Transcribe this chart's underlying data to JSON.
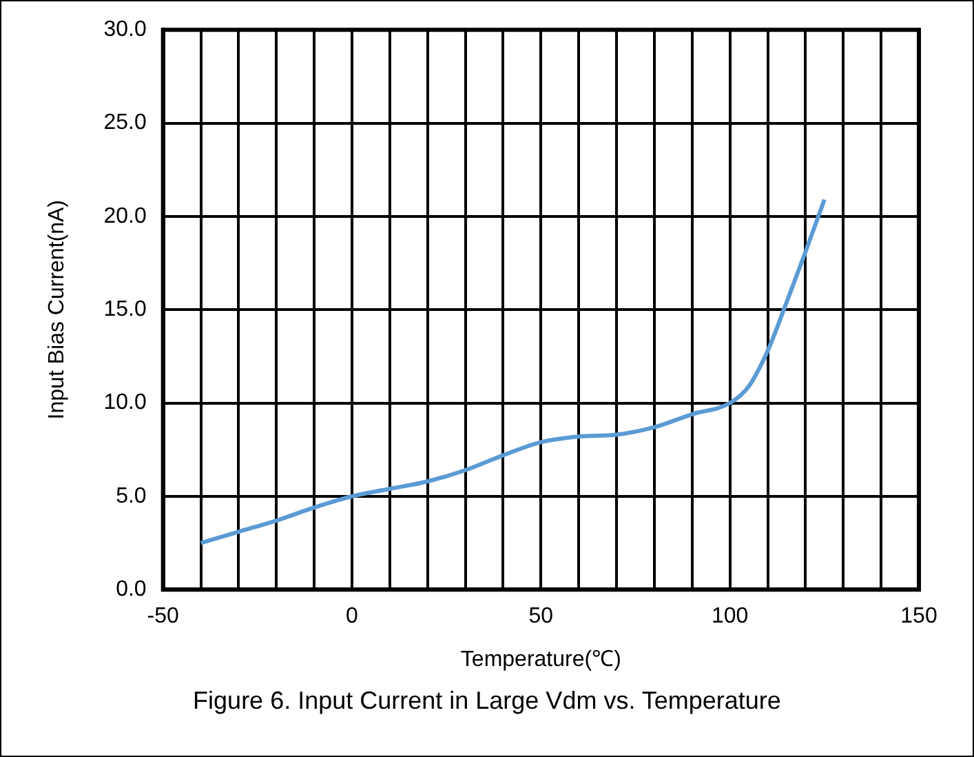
{
  "chart_data": {
    "type": "line",
    "xlabel": "Temperature(℃)",
    "ylabel": "Input Bias Current(nA)",
    "annotations": [
      "Figure 6. Input Current in Large Vdm vs. Temperature"
    ],
    "x": [
      -40,
      -30,
      -20,
      -10,
      0,
      10,
      20,
      30,
      40,
      50,
      60,
      70,
      80,
      90,
      100,
      105,
      110,
      115,
      120,
      125
    ],
    "series": [
      {
        "color": "#5b9bd5",
        "values": [
          2.5,
          3.1,
          3.7,
          4.4,
          5.0,
          5.4,
          5.8,
          6.4,
          7.2,
          7.9,
          8.2,
          8.3,
          8.7,
          9.4,
          10.0,
          10.9,
          12.8,
          15.4,
          18.1,
          20.9
        ]
      }
    ],
    "xlim": [
      -50,
      150
    ],
    "xticks": [
      -50,
      {
        "value": -40,
        "label": null
      },
      {
        "value": -30,
        "label": null
      },
      {
        "value": -20,
        "label": null
      },
      {
        "value": -10,
        "label": null
      },
      0,
      {
        "value": 10,
        "label": null
      },
      {
        "value": 20,
        "label": null
      },
      {
        "value": 30,
        "label": null
      },
      {
        "value": 40,
        "label": null
      },
      50,
      {
        "value": 60,
        "label": null
      },
      {
        "value": 70,
        "label": null
      },
      {
        "value": 80,
        "label": null
      },
      {
        "value": 90,
        "label": null
      },
      100,
      {
        "value": 110,
        "label": null
      },
      {
        "value": 120,
        "label": null
      },
      {
        "value": 130,
        "label": null
      },
      {
        "value": 140,
        "label": null
      },
      150
    ],
    "ylim": [
      0,
      30
    ],
    "yticks": [
      {
        "value": 0,
        "label": "0.0"
      },
      {
        "value": 5,
        "label": "5.0"
      },
      {
        "value": 10,
        "label": "10.0"
      },
      {
        "value": 15,
        "label": "15.0"
      },
      {
        "value": 20,
        "label": "20.0"
      },
      {
        "value": 25,
        "label": "25.0"
      },
      {
        "value": 30,
        "label": "30.0"
      }
    ],
    "grid": true,
    "legend": false,
    "marker": "none",
    "line_style": "solid"
  }
}
